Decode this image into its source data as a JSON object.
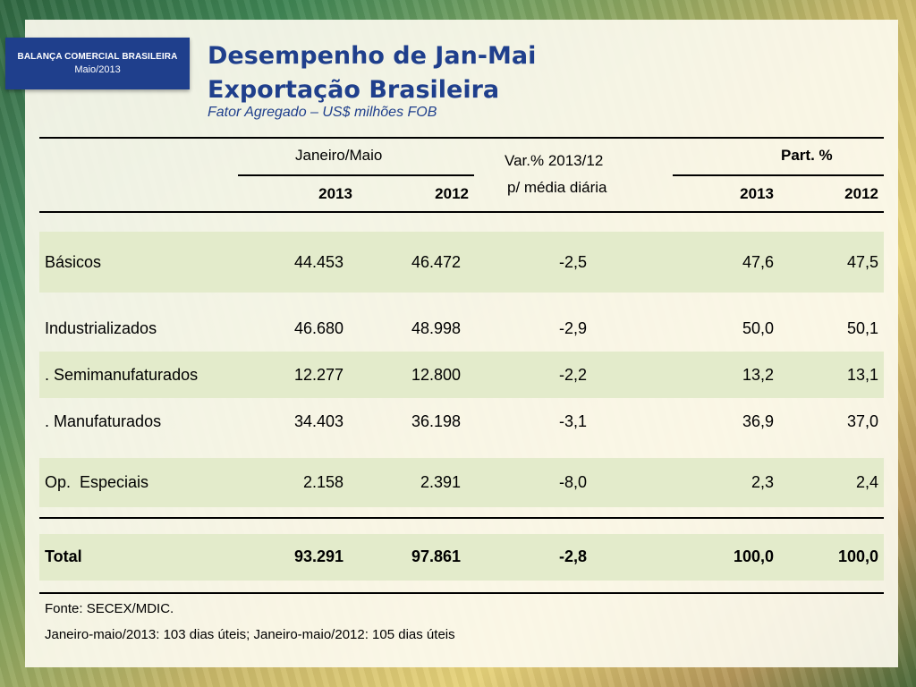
{
  "badge": {
    "line1": "BALANÇA COMERCIAL BRASILEIRA",
    "line2": "Maio/2013"
  },
  "title": {
    "line1": "Desempenho de Jan-Mai",
    "line2": "Exportação Brasileira",
    "subtitle": "Fator Agregado – US$ milhões FOB"
  },
  "table": {
    "header": {
      "group1": "Janeiro/Maio",
      "var_line1": "Var.% 2013/12",
      "var_line2": "p/ média diária",
      "group2": "Part. %",
      "y2013": "2013",
      "y2012": "2012",
      "p2013": "2013",
      "p2012": "2012"
    },
    "rows": [
      {
        "label": "Básicos",
        "v2013": "44.453",
        "v2012": "46.472",
        "var": "-2,5",
        "p2013": "47,6",
        "p2012": "47,5"
      },
      {
        "label": "Industrializados",
        "v2013": "46.680",
        "v2012": "48.998",
        "var": "-2,9",
        "p2013": "50,0",
        "p2012": "50,1"
      },
      {
        "label": ". Semimanufaturados",
        "v2013": "12.277",
        "v2012": "12.800",
        "var": "-2,2",
        "p2013": "13,2",
        "p2012": "13,1"
      },
      {
        "label": ". Manufaturados",
        "v2013": "34.403",
        "v2012": "36.198",
        "var": "-3,1",
        "p2013": "36,9",
        "p2012": "37,0"
      },
      {
        "label": "Op.  Especiais",
        "v2013": "2.158",
        "v2012": "2.391",
        "var": "-8,0",
        "p2013": "2,3",
        "p2012": "2,4"
      }
    ],
    "total": {
      "label": "Total",
      "v2013": "93.291",
      "v2012": "97.861",
      "var": "-2,8",
      "p2013": "100,0",
      "p2012": "100,0"
    }
  },
  "footer": {
    "source": "Fonte: SECEX/MDIC.",
    "note": "Janeiro-maio/2013: 103 dias úteis; Janeiro-maio/2012: 105 dias úteis"
  }
}
